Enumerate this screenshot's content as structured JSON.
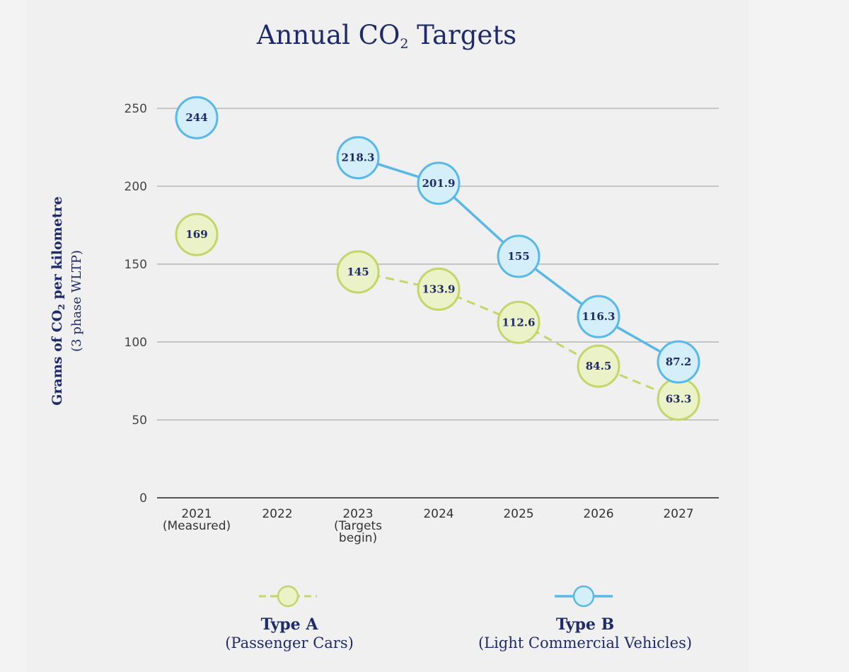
{
  "chart_data": {
    "type": "line",
    "title_main": "Annual CO",
    "title_sub": "2",
    "title_end": " Targets",
    "ylabel_main_a": "Grams of CO",
    "ylabel_main_sub": "2",
    "ylabel_main_b": " per kilometre",
    "ylabel_sub": "(3 phase WLTP)",
    "ylim": [
      0,
      250
    ],
    "yticks": [
      0,
      50,
      100,
      150,
      200,
      250
    ],
    "grid": true,
    "categories": [
      [
        "2021",
        "(Measured)"
      ],
      [
        "2022"
      ],
      [
        "2023",
        "(Targets",
        "begin)"
      ],
      [
        "2024"
      ],
      [
        "2025"
      ],
      [
        "2026"
      ],
      [
        "2027"
      ]
    ],
    "series": [
      {
        "name": "Type A",
        "description": "(Passenger Cars)",
        "style": "dashed",
        "line_color": "#c3d66a",
        "marker_fill": "#ebf2c8",
        "marker_stroke": "#c3d66a",
        "values": [
          169,
          null,
          145,
          133.9,
          112.6,
          84.5,
          63.3
        ],
        "labels": [
          "169",
          null,
          "145",
          "133.9",
          "112.6",
          "84.5",
          "63.3"
        ],
        "connect_from_index": 2
      },
      {
        "name": "Type B",
        "description": "(Light Commercial Vehicles)",
        "style": "solid",
        "line_color": "#58b9e8",
        "marker_fill": "#d4eefa",
        "marker_stroke": "#58b9e8",
        "values": [
          244,
          null,
          218.3,
          201.9,
          155,
          116.3,
          87.2
        ],
        "labels": [
          "244",
          null,
          "218.3",
          "201.9",
          "155",
          "116.3",
          "87.2"
        ],
        "connect_from_index": 2
      }
    ],
    "legend_position": "bottom"
  }
}
